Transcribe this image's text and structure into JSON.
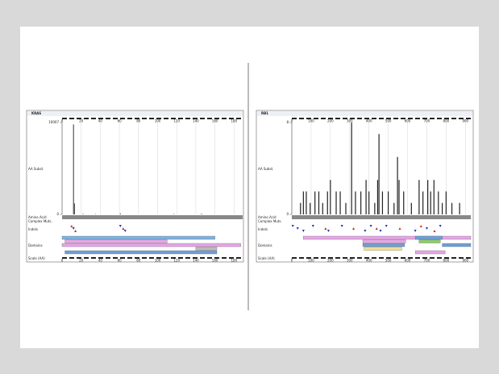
{
  "chart_data": [
    {
      "type": "bar",
      "title": "KRAS",
      "y_label": "AA Subst.",
      "track_labels": [
        "Amino Acid",
        "Complex Muts.",
        "Indels",
        "Domains",
        "Scale (AA)"
      ],
      "x": [
        12,
        13,
        22,
        35,
        61,
        117,
        146
      ],
      "values": [
        9800,
        1200,
        60,
        40,
        110,
        50,
        80
      ],
      "color": "#555555",
      "xlim": [
        0,
        189
      ],
      "xticks": [
        0,
        20,
        40,
        60,
        80,
        100,
        120,
        140,
        160,
        180
      ],
      "ylim": [
        0,
        10007
      ],
      "yticks": [
        0,
        10007
      ],
      "indels": [
        {
          "x": 10,
          "color": "#e02020"
        },
        {
          "x": 12,
          "color": "#2030c0"
        },
        {
          "x": 14,
          "color": "#e02020"
        },
        {
          "x": 61,
          "color": "#2030c0"
        },
        {
          "x": 64,
          "color": "#e02020"
        },
        {
          "x": 66,
          "color": "#2030c0"
        }
      ],
      "domains": [
        {
          "start": 0,
          "end": 160,
          "color": "#7fb2e0"
        },
        {
          "start": 3,
          "end": 110,
          "color": "#e6a6e6"
        },
        {
          "start": 0,
          "end": 187,
          "color": "#e6a6e6"
        },
        {
          "start": 140,
          "end": 162,
          "color": "#bbbbbb"
        },
        {
          "start": 3,
          "end": 162,
          "color": "#6f9fd8"
        }
      ]
    },
    {
      "type": "bar",
      "title": "RB1",
      "y_label": "AA Subst.",
      "track_labels": [
        "Amino Acid",
        "Complex Muts.",
        "Indels",
        "Domains",
        "Scale (AA)"
      ],
      "x": [
        45,
        60,
        75,
        95,
        120,
        140,
        160,
        185,
        200,
        230,
        251,
        280,
        310,
        330,
        358,
        385,
        400,
        430,
        445,
        452,
        470,
        500,
        530,
        548,
        556,
        580,
        620,
        660,
        680,
        705,
        720,
        737,
        760,
        780,
        800,
        830,
        870
      ],
      "values": [
        1,
        2,
        2,
        1,
        2,
        2,
        1,
        2,
        3,
        2,
        2,
        1,
        8,
        2,
        2,
        3,
        2,
        1,
        3,
        7,
        2,
        2,
        1,
        5,
        3,
        2,
        1,
        3,
        2,
        3,
        2,
        3,
        2,
        1,
        2,
        1,
        1
      ],
      "color": "#222222",
      "xlim": [
        0,
        928
      ],
      "xticks": [
        0,
        100,
        200,
        300,
        400,
        500,
        600,
        700,
        800,
        900
      ],
      "ylim": [
        0,
        8
      ],
      "yticks": [
        0,
        8
      ],
      "indels": [
        {
          "x": 5,
          "color": "#2030c0"
        },
        {
          "x": 30,
          "color": "#2030c0"
        },
        {
          "x": 60,
          "color": "#2030c0"
        },
        {
          "x": 110,
          "color": "#2030c0"
        },
        {
          "x": 175,
          "color": "#e02020"
        },
        {
          "x": 190,
          "color": "#2030c0"
        },
        {
          "x": 260,
          "color": "#2030c0"
        },
        {
          "x": 320,
          "color": "#e02020"
        },
        {
          "x": 380,
          "color": "#2030c0"
        },
        {
          "x": 410,
          "color": "#2030c0"
        },
        {
          "x": 440,
          "color": "#e02020"
        },
        {
          "x": 460,
          "color": "#2030c0"
        },
        {
          "x": 490,
          "color": "#2030c0"
        },
        {
          "x": 560,
          "color": "#e02020"
        },
        {
          "x": 640,
          "color": "#2030c0"
        },
        {
          "x": 670,
          "color": "#e02020"
        },
        {
          "x": 700,
          "color": "#2030c0"
        },
        {
          "x": 740,
          "color": "#e02020"
        },
        {
          "x": 770,
          "color": "#2030c0"
        }
      ],
      "domains": [
        {
          "start": 59,
          "end": 928,
          "color": "#e6a6e6"
        },
        {
          "start": 368,
          "end": 590,
          "color": "#e6a6e6"
        },
        {
          "start": 368,
          "end": 585,
          "color": "#6f9fd8"
        },
        {
          "start": 375,
          "end": 570,
          "color": "#f0e08a"
        },
        {
          "start": 640,
          "end": 795,
          "color": "#e6a6e6"
        },
        {
          "start": 640,
          "end": 780,
          "color": "#6f9fd8"
        },
        {
          "start": 660,
          "end": 770,
          "color": "#8ccc6a"
        },
        {
          "start": 780,
          "end": 928,
          "color": "#6f9fd8"
        }
      ]
    }
  ]
}
